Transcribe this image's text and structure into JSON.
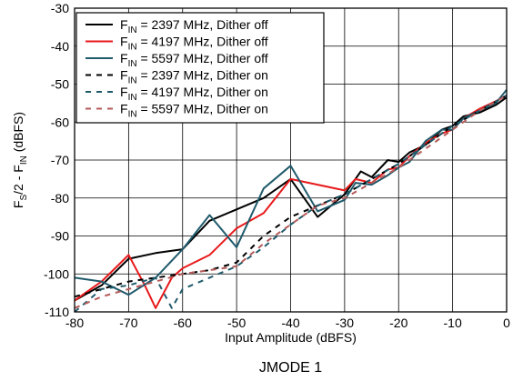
{
  "caption": "JMODE 1",
  "chart_data": {
    "type": "line",
    "xlabel": "Input Amplitude (dBFS)",
    "ylabel": {
      "base1": "F",
      "sub1": "S",
      "mid": "/2 - F",
      "sub2": "IN",
      "tail": " (dBFS)"
    },
    "xlim": [
      -80,
      0
    ],
    "ylim": [
      -110,
      -30
    ],
    "xticks": [
      -80,
      -70,
      -60,
      -50,
      -40,
      -30,
      -20,
      -10,
      0
    ],
    "yticks": [
      -110,
      -100,
      -90,
      -80,
      -70,
      -60,
      -50,
      -40,
      -30
    ],
    "grid": true,
    "legend_position": "top-left",
    "series": [
      {
        "name": "F_IN = 2397 MHz, Dither off",
        "legend": {
          "pre": "F",
          "sub": "IN",
          "post": " = 2397 MHz, Dither off"
        },
        "color": "#000000",
        "dash": "solid",
        "x": [
          -80,
          -75,
          -70,
          -65,
          -60,
          -55,
          -50,
          -45,
          -40,
          -35,
          -30,
          -27,
          -25,
          -22,
          -20,
          -18,
          -15,
          -12,
          -10,
          -8,
          -5,
          -2,
          0
        ],
        "y": [
          -107,
          -103,
          -96,
          -94.5,
          -93.5,
          -86,
          -83,
          -80,
          -75,
          -85,
          -79,
          -73,
          -74.5,
          -70,
          -70.5,
          -68,
          -66,
          -62,
          -61,
          -58.5,
          -57.5,
          -55.5,
          -53.5
        ]
      },
      {
        "name": "F_IN = 4197 MHz, Dither off",
        "legend": {
          "pre": "F",
          "sub": "IN",
          "post": " = 4197 MHz, Dither off"
        },
        "color": "#e8191b",
        "dash": "solid",
        "x": [
          -80,
          -75,
          -70,
          -67,
          -65,
          -62,
          -60,
          -55,
          -50,
          -45,
          -40,
          -35,
          -30,
          -28,
          -25,
          -22,
          -20,
          -18,
          -15,
          -12,
          -10,
          -8,
          -5,
          -2,
          0
        ],
        "y": [
          -107,
          -102,
          -95,
          -103,
          -109,
          -101,
          -98.5,
          -95,
          -88,
          -84,
          -75,
          -76.5,
          -78,
          -75,
          -76,
          -72.5,
          -72,
          -69,
          -65.5,
          -63,
          -62,
          -59,
          -56.5,
          -54.5,
          -53
        ]
      },
      {
        "name": "F_IN = 5597 MHz, Dither off",
        "legend": {
          "pre": "F",
          "sub": "IN",
          "post": " = 5597 MHz, Dither off"
        },
        "color": "#1f5a6b",
        "dash": "solid",
        "x": [
          -80,
          -75,
          -70,
          -65,
          -60,
          -55,
          -50,
          -45,
          -40,
          -35,
          -30,
          -28,
          -25,
          -22,
          -20,
          -18,
          -15,
          -12,
          -10,
          -8,
          -5,
          -2,
          0
        ],
        "y": [
          -101,
          -102,
          -105.5,
          -101,
          -93.5,
          -84.5,
          -93,
          -77.5,
          -71.5,
          -83.5,
          -80.5,
          -76,
          -76.5,
          -74,
          -72,
          -70.5,
          -65,
          -62,
          -62,
          -59,
          -57,
          -55,
          -51.5
        ]
      },
      {
        "name": "F_IN = 2397 MHz, Dither on",
        "legend": {
          "pre": "F",
          "sub": "IN",
          "post": " = 2397 MHz, Dither on"
        },
        "color": "#000000",
        "dash": "dashed",
        "x": [
          -80,
          -75,
          -70,
          -65,
          -60,
          -55,
          -50,
          -45,
          -40,
          -35,
          -30,
          -25,
          -20,
          -15,
          -10,
          -5,
          0
        ],
        "y": [
          -106,
          -104,
          -102,
          -101,
          -100,
          -99,
          -97,
          -90,
          -85,
          -82,
          -79,
          -75,
          -71,
          -66,
          -61,
          -57,
          -53
        ]
      },
      {
        "name": "F_IN = 4197 MHz, Dither on",
        "legend": {
          "pre": "F",
          "sub": "IN",
          "post": " = 4197 MHz, Dither on"
        },
        "color": "#1f5a6b",
        "dash": "dashed",
        "x": [
          -80,
          -75,
          -70,
          -65,
          -62,
          -60,
          -55,
          -50,
          -45,
          -40,
          -35,
          -30,
          -25,
          -20,
          -15,
          -10,
          -5,
          0
        ],
        "y": [
          -110,
          -104,
          -103,
          -101,
          -109,
          -104,
          -101,
          -98,
          -93,
          -87,
          -82,
          -79,
          -75,
          -71,
          -66,
          -61,
          -57,
          -53
        ]
      },
      {
        "name": "F_IN = 5597 MHz, Dither on",
        "legend": {
          "pre": "F",
          "sub": "IN",
          "post": " = 5597 MHz, Dither on"
        },
        "color": "#b55a5a",
        "dash": "dashed",
        "x": [
          -80,
          -75,
          -70,
          -65,
          -60,
          -55,
          -50,
          -45,
          -40,
          -35,
          -30,
          -25,
          -20,
          -15,
          -10,
          -5,
          0
        ],
        "y": [
          -109,
          -106,
          -104,
          -102,
          -100,
          -99,
          -98,
          -92,
          -87,
          -82,
          -80,
          -76,
          -72,
          -67,
          -62,
          -57,
          -53
        ]
      }
    ]
  }
}
